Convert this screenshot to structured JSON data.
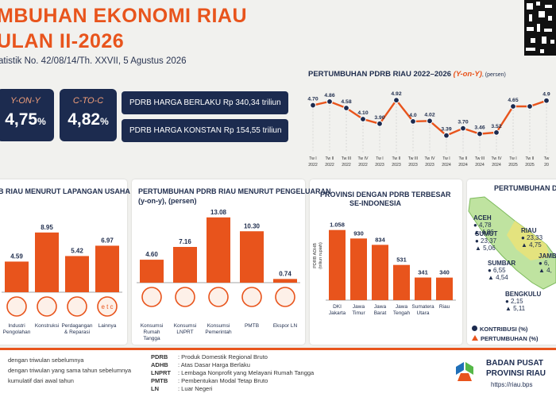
{
  "header": {
    "title_line1": "MBUHAN EKONOMI RIAU",
    "title_line2": "ULAN II-2026",
    "subtitle": "atistik No. 42/08/14/Th. XXVII, 5 Agustus 2026"
  },
  "kpi": {
    "yoy_label": "Y-ON-Y",
    "yoy_value": "4,75",
    "yoy_unit": "%",
    "ctoc_label": "C-TO-C",
    "ctoc_value": "4,82",
    "ctoc_unit": "%"
  },
  "pdrb": {
    "berlaku": "PDRB HARGA BERLAKU Rp 340,34 triliun",
    "konstan": "PDRB HARGA KONSTAN Rp 154,55 triliun"
  },
  "sections": {
    "lapangan": "B RIAU MENURUT LAPANGAN USAHA",
    "pengeluaran": "PERTUMBUHAN PDRB RIAU MENURUT PENGELUARAN",
    "pengeluaran_sub": "(y-on-y), (persen)",
    "provinsi_1": "PROVINSI DENGAN PDRB TERBESAR",
    "provinsi_2": "SE-INDONESIA",
    "map_title": "PERTUMBUHAN DA"
  },
  "legend": {
    "kontribusi": "KONTRIBUSI (%)",
    "pertumbuhan": "PERTUMBUHAN (%)"
  },
  "map": [
    {
      "name": "ACEH",
      "kontribusi": "4,78",
      "pertumbuhan": "4,86"
    },
    {
      "name": "SUMUT",
      "kontribusi": "23,37",
      "pertumbuhan": "5,06"
    },
    {
      "name": "RIAU",
      "kontribusi": "23,33",
      "pertumbuhan": "4,75"
    },
    {
      "name": "SUMBAR",
      "kontribusi": "6,55",
      "pertumbuhan": "4,54"
    },
    {
      "name": "JAMB",
      "kontribusi": "6,",
      "pertumbuhan": "4,"
    },
    {
      "name": "BENGKULU",
      "kontribusi": "2,15",
      "pertumbuhan": "5,11"
    }
  ],
  "footer": {
    "note1": "dengan triwulan sebelumnya",
    "note2": "dengan triwulan yang sama tahun sebelumnya",
    "note3": "kumulatif dari awal tahun",
    "abbr": [
      {
        "k": "PDRB",
        "v": ": Produk Domestik Regional Bruto"
      },
      {
        "k": "ADHB",
        "v": ": Atas Dasar Harga Berlaku"
      },
      {
        "k": "LNPRT",
        "v": ": Lembaga Nonprofit yang Melayani Rumah Tangga"
      },
      {
        "k": "PMTB",
        "v": ": Pembentukan Modal Tetap Bruto"
      },
      {
        "k": "LN",
        "v": ": Luar Negeri"
      }
    ],
    "bps1": "BADAN PUSAT",
    "bps2": "PROVINSI RIAU",
    "url": "https://riau.bps"
  },
  "chart_data": [
    {
      "type": "line",
      "title": "PERTUMBUHAN PDRB RIAU 2022–2026 (Y-on-Y), (persen)",
      "title_main": "PERTUMBUHAN  PDRB RIAU 2022–2026 ",
      "title_italic": "(Y-on-Y)",
      "title_unit": ", (persen)",
      "categories": [
        "Tw I 2022",
        "Tw II 2022",
        "Tw III 2022",
        "Tw IV 2022",
        "Tw I 2023",
        "Tw II 2023",
        "Tw III 2023",
        "Tw IV 2023",
        "Tw I 2024",
        "Tw II 2024",
        "Tw III 2024",
        "Tw IV 2024",
        "Tw I 2025",
        "Tw II 2025",
        "Tw"
      ],
      "tick_top": [
        "Tw I",
        "Tw II",
        "Tw III",
        "Tw IV",
        "Tw I",
        "Tw II",
        "Tw III",
        "Tw IV",
        "Tw I",
        "Tw II",
        "Tw III",
        "Tw IV",
        "Tw I",
        "Tw II",
        "Tw"
      ],
      "tick_bottom": [
        "2022",
        "2022",
        "2022",
        "2022",
        "2023",
        "2023",
        "2023",
        "2023",
        "2024",
        "2024",
        "2024",
        "2024",
        "2025",
        "2025",
        "20"
      ],
      "values": [
        4.7,
        4.86,
        4.58,
        4.1,
        3.9,
        4.92,
        4.0,
        4.02,
        3.39,
        3.7,
        3.46,
        3.52,
        4.65,
        4.65,
        4.9
      ],
      "labels": [
        "4.70",
        "4.86",
        "4.58",
        "4.10",
        "3.90",
        "4.92",
        "4.0",
        "4.02",
        "3.39",
        "3.70",
        "3.46",
        "3.52",
        "4.65",
        "",
        "4.9"
      ],
      "ylim": [
        3.0,
        5.2
      ]
    },
    {
      "type": "bar",
      "title": "B RIAU MENURUT LAPANGAN USAHA",
      "categories": [
        "Industri Pengolahan",
        "Konstruksi",
        "Perdagangan & Reparasi",
        "Lainnya"
      ],
      "values": [
        4.59,
        8.95,
        5.42,
        6.97
      ],
      "labels": [
        "4.59",
        "8.95",
        "5.42",
        "6.97"
      ],
      "icon_text": "e t c",
      "ylim": [
        0,
        10
      ]
    },
    {
      "type": "bar",
      "title": "PERTUMBUHAN PDRB RIAU MENURUT PENGELUARAN (y-on-y), (persen)",
      "categories": [
        "Konsumsi Rumah Tangga",
        "Konsumsi LNPRT",
        "Konsumsi Pemerintah",
        "PMTB",
        "Ekspor LN"
      ],
      "values": [
        4.6,
        7.16,
        13.08,
        10.3,
        0.74
      ],
      "labels": [
        "4.60",
        "7.16",
        "13.08",
        "10.30",
        "0.74"
      ],
      "ylim": [
        0,
        14
      ]
    },
    {
      "type": "bar",
      "title": "PROVINSI DENGAN PDRB TERBESAR SE-INDONESIA",
      "ylabel": "PDRB ADHB (triliun rupiah)",
      "ylabel_1": "PDRB ADHB",
      "ylabel_2": "(triliun rupiah)",
      "categories": [
        "DKI Jakarta",
        "Jawa Timur",
        "Jawa Barat",
        "Jawa Tengah",
        "Sumatera Utara",
        "Riau"
      ],
      "values": [
        1058,
        930,
        834,
        531,
        341,
        340
      ],
      "labels": [
        "1.058",
        "930",
        "834",
        "531",
        "341",
        "340"
      ],
      "ylim": [
        0,
        1150
      ]
    }
  ]
}
